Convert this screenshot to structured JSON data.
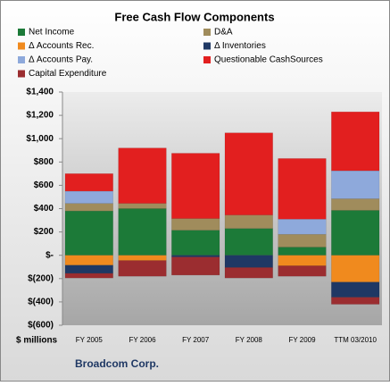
{
  "chart_data": {
    "type": "bar",
    "stacked": true,
    "title": "Free Cash Flow Components",
    "categories": [
      "FY 2005",
      "FY 2006",
      "FY 2007",
      "FY 2008",
      "FY 2009",
      "TTM 03/2010"
    ],
    "series": [
      {
        "name": "Net Income",
        "color": "#1c7a38",
        "values": [
          380,
          400,
          215,
          230,
          70,
          385
        ]
      },
      {
        "name": "D&A",
        "color": "#a08c5c",
        "values": [
          65,
          45,
          100,
          115,
          110,
          100
        ]
      },
      {
        "name": "Δ Accounts Rec.",
        "color": "#f08a1e",
        "values": [
          -85,
          -45,
          0,
          0,
          -90,
          -230
        ]
      },
      {
        "name": "Δ Inventories",
        "color": "#1f3864",
        "values": [
          -70,
          0,
          -15,
          -105,
          0,
          -130
        ]
      },
      {
        "name": "Δ Accounts Pay.",
        "color": "#8ea9db",
        "values": [
          105,
          0,
          0,
          0,
          130,
          240
        ]
      },
      {
        "name": "Questionable CashSources",
        "color": "#e21f1f",
        "values": [
          150,
          475,
          560,
          705,
          520,
          505
        ]
      },
      {
        "name": "Capital Expenditure",
        "color": "#9b2d30",
        "values": [
          -40,
          -135,
          -155,
          -90,
          -90,
          -60
        ]
      }
    ],
    "ylim": [
      -600,
      1400
    ],
    "yticks": [
      {
        "value": -600,
        "label": "$(600)"
      },
      {
        "value": -400,
        "label": "$(400)"
      },
      {
        "value": -200,
        "label": "$(200)"
      },
      {
        "value": 0,
        "label": "$-"
      },
      {
        "value": 200,
        "label": "$200"
      },
      {
        "value": 400,
        "label": "$400"
      },
      {
        "value": 600,
        "label": "$600"
      },
      {
        "value": 800,
        "label": "$800"
      },
      {
        "value": 1000,
        "label": "$1,000"
      },
      {
        "value": 1200,
        "label": "$1,200"
      },
      {
        "value": 1400,
        "label": "$1,400"
      }
    ],
    "units_label": "$ millions",
    "company": "Broadcom Corp."
  }
}
